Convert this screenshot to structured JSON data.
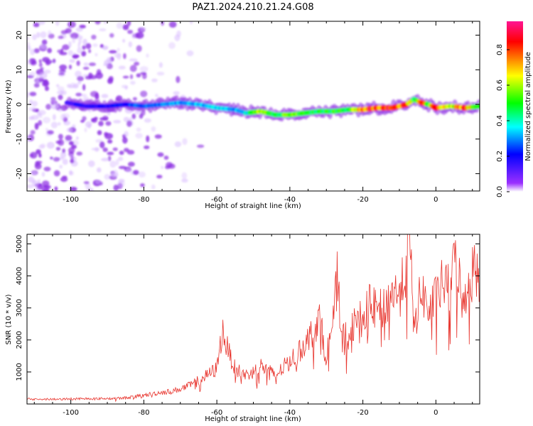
{
  "title": "PAZ1.2024.210.21.24.G08",
  "chart_data": [
    {
      "type": "heatmap",
      "xlabel": "Height of straight line (km)",
      "ylabel": "Frequency (Hz)",
      "xlim": [
        -112,
        12
      ],
      "ylim": [
        -25,
        24
      ],
      "xticks": [
        -100,
        -80,
        -60,
        -40,
        -20,
        0
      ],
      "yticks": [
        20,
        10,
        0,
        -10,
        -20
      ],
      "colorbar": {
        "label": "Normalized spectral amplitude",
        "range": [
          0,
          0.96
        ],
        "ticks": [
          0.0,
          0.2,
          0.4,
          0.6,
          0.8
        ],
        "colors": [
          "#ffffff",
          "#9b30ff",
          "#0000ff",
          "#00ffff",
          "#00ff00",
          "#ffff00",
          "#ff8000",
          "#ff0000",
          "#ff1493"
        ]
      },
      "ridge": {
        "x": [
          -101,
          -96,
          -90,
          -85,
          -80,
          -75,
          -70,
          -65,
          -60,
          -55,
          -52,
          -48,
          -44,
          -40,
          -36,
          -32,
          -28,
          -24,
          -20,
          -16,
          -12,
          -8,
          -6,
          -4,
          -2,
          0,
          4,
          8,
          12
        ],
        "freq_hz": [
          0.5,
          -0.5,
          -0.5,
          0,
          -0.5,
          0,
          0.5,
          0,
          -1,
          -1.5,
          -2.5,
          -2,
          -3,
          -3,
          -2.5,
          -2,
          -2,
          -1.5,
          -1.5,
          -1,
          -1,
          0,
          1.5,
          0.5,
          0,
          -1,
          -0.5,
          -1,
          -0.5
        ],
        "amplitude": [
          0.15,
          0.2,
          0.2,
          0.25,
          0.3,
          0.3,
          0.35,
          0.35,
          0.4,
          0.35,
          0.4,
          0.65,
          0.55,
          0.6,
          0.55,
          0.55,
          0.55,
          0.5,
          0.85,
          0.9,
          0.9,
          0.9,
          0.5,
          0.9,
          0.6,
          0.9,
          0.6,
          0.9,
          0.5
        ]
      },
      "noise": {
        "x_range": [
          -112,
          -64
        ],
        "freq_range": [
          -25,
          24
        ],
        "amplitude_max": 0.25
      }
    },
    {
      "type": "line",
      "xlabel": "Height of straight line (km)",
      "ylabel": "SNR (10 * v/v)",
      "xlim": [
        -112,
        12
      ],
      "ylim": [
        0,
        5300
      ],
      "xticks": [
        -100,
        -80,
        -60,
        -40,
        -20,
        0
      ],
      "yticks": [
        1000,
        2000,
        3000,
        4000,
        5000
      ],
      "color": "#e8352e",
      "series": [
        {
          "x": [
            -112,
            -104,
            -96,
            -90,
            -86,
            -80,
            -76,
            -72,
            -68,
            -64,
            -60,
            -58.5,
            -57,
            -55,
            -52,
            -50,
            -48,
            -46,
            -44,
            -42,
            -40,
            -38,
            -36,
            -34,
            -32,
            -30,
            -28,
            -27,
            -26,
            -24,
            -22,
            -20,
            -18,
            -16,
            -14,
            -12,
            -10,
            -8,
            -7.5,
            -7,
            -6,
            -4,
            -2,
            0,
            2,
            4,
            5.5,
            7,
            9,
            10.5,
            12
          ],
          "y": [
            150,
            150,
            170,
            170,
            180,
            270,
            350,
            400,
            550,
            800,
            1100,
            2300,
            1700,
            1100,
            900,
            1000,
            1200,
            1050,
            900,
            1100,
            1400,
            1500,
            1900,
            2200,
            2700,
            1500,
            2600,
            4050,
            2200,
            2100,
            2600,
            2700,
            3100,
            2900,
            3000,
            3500,
            3400,
            4300,
            5300,
            4700,
            2300,
            3600,
            2900,
            3300,
            3800,
            3500,
            4800,
            3300,
            3700,
            4300,
            4000
          ]
        }
      ]
    }
  ]
}
